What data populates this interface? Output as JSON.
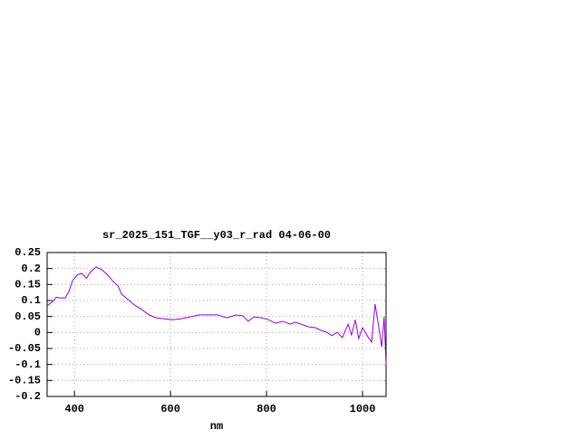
{
  "chart_data": {
    "type": "line",
    "title": "sr_2025_151_TGF__y03_r_rad 04-06-00",
    "x_label": "nm",
    "color": "#9400d3",
    "grid": true,
    "xlim": [
      343,
      1049
    ],
    "ylim": [
      -0.2,
      0.25
    ],
    "xticks": [
      400,
      600,
      800,
      1000
    ],
    "yticks": [
      -0.2,
      -0.15,
      -0.1,
      -0.05,
      0,
      0.05,
      0.1,
      0.15,
      0.2,
      0.25
    ],
    "x": [
      343,
      355,
      362,
      370,
      381,
      389,
      396,
      406,
      415,
      425,
      434,
      445,
      457,
      468,
      479,
      491,
      498,
      509,
      525,
      540,
      555,
      570,
      585,
      604,
      623,
      642,
      660,
      679,
      698,
      717,
      736,
      751,
      762,
      774,
      789,
      804,
      819,
      834,
      849,
      860,
      872,
      887,
      902,
      913,
      925,
      936,
      947,
      958,
      970,
      977,
      985,
      992,
      1000,
      1011,
      1019,
      1026,
      1034,
      1040,
      1045,
      1049
    ],
    "values": [
      0.083,
      0.097,
      0.11,
      0.108,
      0.108,
      0.13,
      0.163,
      0.18,
      0.185,
      0.17,
      0.19,
      0.205,
      0.196,
      0.182,
      0.162,
      0.145,
      0.12,
      0.106,
      0.086,
      0.072,
      0.055,
      0.046,
      0.043,
      0.04,
      0.043,
      0.049,
      0.055,
      0.055,
      0.055,
      0.046,
      0.055,
      0.052,
      0.035,
      0.049,
      0.046,
      0.04,
      0.029,
      0.035,
      0.026,
      0.032,
      0.026,
      0.018,
      0.015,
      0.007,
      0.001,
      -0.01,
      0.001,
      -0.016,
      0.026,
      -0.008,
      0.04,
      -0.019,
      0.015,
      -0.013,
      -0.03,
      0.089,
      0.015,
      -0.045,
      0.049,
      -0.1
    ]
  }
}
